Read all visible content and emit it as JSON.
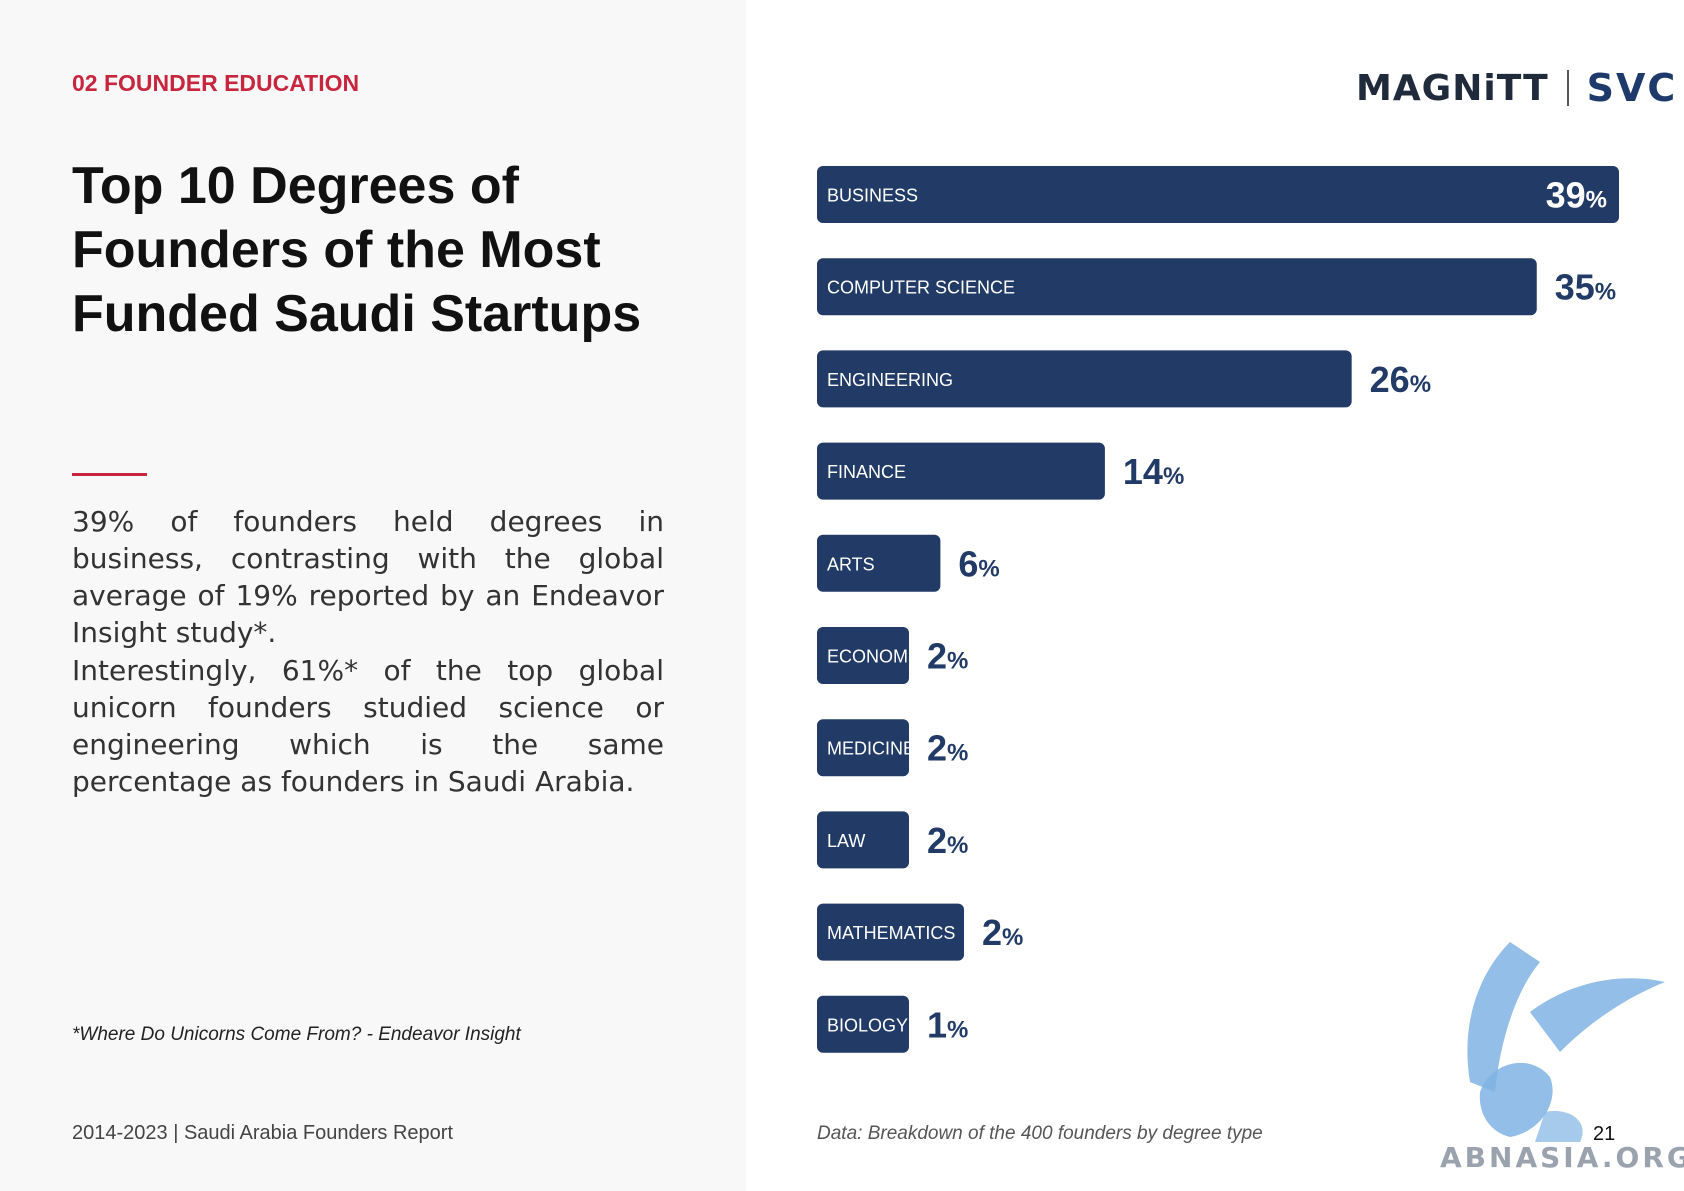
{
  "section": {
    "label": "02 FOUNDER EDUCATION"
  },
  "title": "Top 10 Degrees of Founders of the Most Funded Saudi Startups",
  "paragraphs": [
    "39% of founders held degrees in business, contrasting with the global average of 19% reported by an Endeavor Insight study*.",
    "Interestingly, 61%* of the top global unicorn founders studied science or engineering which is the same percentage as founders in Saudi Arabia."
  ],
  "footnote": "*Where Do Unicorns Come From? - Endeavor Insight",
  "footer": {
    "report": "2014-2023 | Saudi Arabia Founders Report",
    "page": "21"
  },
  "logos": {
    "magnitt": "MAGNiTT",
    "svc": "SVC"
  },
  "watermark_text": "ABNASIA.ORG",
  "colors": {
    "accent": "#c8263f",
    "bar": "#213a66",
    "text_dark": "#111111"
  },
  "chart_data": {
    "type": "bar",
    "orientation": "horizontal",
    "categories": [
      "BUSINESS",
      "COMPUTER SCIENCE",
      "ENGINEERING",
      "FINANCE",
      "ARTS",
      "ECONOMICS",
      "MEDICINE",
      "LAW",
      "MATHEMATICS",
      "BIOLOGY"
    ],
    "values": [
      39,
      35,
      26,
      14,
      6,
      2,
      2,
      2,
      2,
      1
    ],
    "value_suffix": "%",
    "title": "",
    "xlabel": "",
    "ylabel": "",
    "note": "Data: Breakdown of the 400 founders by degree type",
    "grid": false,
    "legend": "none"
  }
}
